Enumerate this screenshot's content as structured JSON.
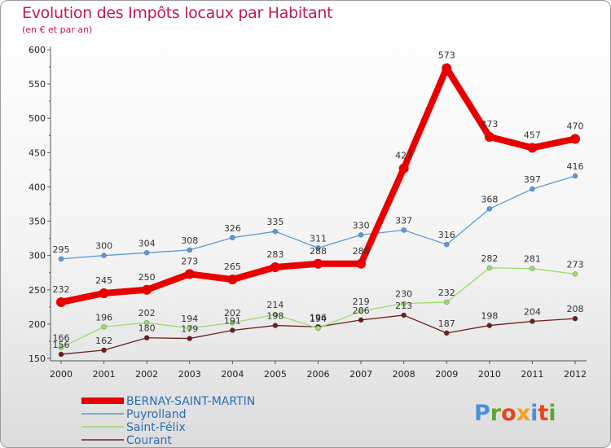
{
  "title": "Evolution des Impôts locaux par Habitant",
  "subtitle": "(en € et par an)",
  "logo": {
    "text": "Proxiti",
    "letter_colors": [
      "#4a90d9",
      "#5aa832",
      "#e8451c",
      "#f3a11b",
      "#4a90d9",
      "#e8451c",
      "#5aa832"
    ]
  },
  "chart_data": {
    "type": "line",
    "title": "Evolution des Impôts locaux par Habitant",
    "ylabel": "(en € et par an)",
    "xlabel": "",
    "x": [
      "2000",
      "2001",
      "2002",
      "2003",
      "2004",
      "2005",
      "2006",
      "2007",
      "2008",
      "2009",
      "2010",
      "2011",
      "2012"
    ],
    "ylim": [
      150,
      600
    ],
    "yticks": [
      "150",
      "200",
      "250",
      "300",
      "350",
      "400",
      "450",
      "500",
      "550",
      "600"
    ],
    "grid": false,
    "legend_position": "bottom-left",
    "series": [
      {
        "name": "BERNAY-SAINT-MARTIN",
        "color": "#e80000",
        "values": [
          232,
          245,
          250,
          273,
          265,
          283,
          288,
          288,
          427,
          573,
          473,
          457,
          470
        ],
        "labels": [
          "232",
          "245",
          "250",
          "273",
          "265",
          "283",
          "288",
          "288",
          "427",
          "573",
          "473",
          "457",
          "470"
        ]
      },
      {
        "name": "Puyrolland",
        "color": "#5b9bd5",
        "values": [
          295,
          300,
          304,
          308,
          326,
          335,
          311,
          330,
          337,
          316,
          368,
          397,
          416
        ],
        "labels": [
          "295",
          "300",
          "304",
          "308",
          "326",
          "335",
          "311",
          "330",
          "337",
          "316",
          "368",
          "397",
          "416"
        ]
      },
      {
        "name": "Saint-Félix",
        "color": "#9bdc6e",
        "values": [
          166,
          196,
          202,
          194,
          202,
          214,
          194,
          219,
          230,
          232,
          282,
          281,
          273
        ],
        "labels": [
          "166",
          "196",
          "202",
          "194",
          "202",
          "214",
          "194",
          "219",
          "230",
          "232",
          "282",
          "281",
          "273"
        ]
      },
      {
        "name": "Courant",
        "color": "#6b1f1f",
        "values": [
          156,
          162,
          180,
          179,
          191,
          198,
          196,
          206,
          213,
          187,
          198,
          204,
          208
        ],
        "labels": [
          "156",
          "162",
          "180",
          "179",
          "191",
          "198",
          "196",
          "206",
          "213",
          "187",
          "198",
          "204",
          "208"
        ]
      }
    ]
  }
}
